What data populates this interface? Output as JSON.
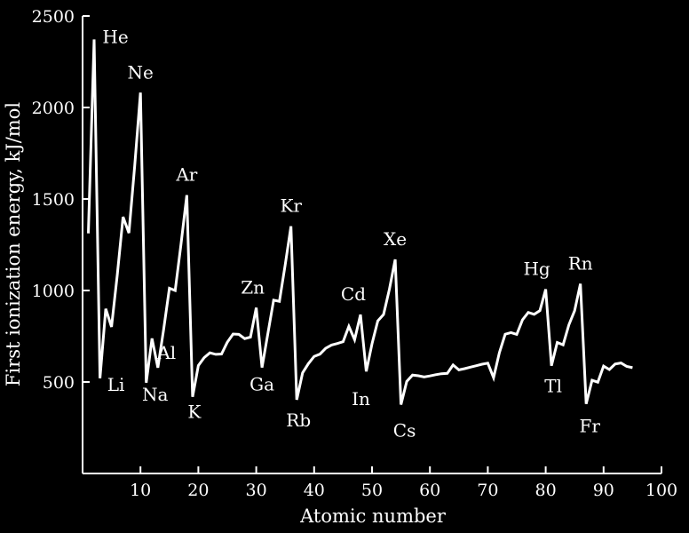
{
  "chart_data": {
    "type": "line",
    "xlabel": "Atomic number",
    "ylabel": "First ionization energy, kJ/mol",
    "xlim": [
      0,
      100
    ],
    "ylim": [
      0,
      2500
    ],
    "xticks": [
      10,
      20,
      30,
      40,
      50,
      60,
      70,
      80,
      90,
      100
    ],
    "yticks": [
      500,
      1000,
      1500,
      2000,
      2500
    ],
    "grid": false,
    "legend": "none",
    "line_color": "#ffffff",
    "background": "#000000",
    "series": [
      {
        "x": [
          1,
          2,
          3,
          4,
          5,
          6,
          7,
          8,
          9,
          10,
          11,
          12,
          13,
          14,
          15,
          16,
          17,
          18,
          19,
          20,
          21,
          22,
          23,
          24,
          25,
          26,
          27,
          28,
          29,
          30,
          31,
          32,
          33,
          34,
          35,
          36,
          37,
          38,
          39,
          40,
          41,
          42,
          43,
          44,
          45,
          46,
          47,
          48,
          49,
          50,
          51,
          52,
          53,
          54,
          55,
          56,
          57,
          58,
          59,
          60,
          61,
          62,
          63,
          64,
          65,
          66,
          67,
          68,
          69,
          70,
          71,
          72,
          73,
          74,
          75,
          76,
          77,
          78,
          79,
          80,
          81,
          82,
          83,
          84,
          85,
          86,
          87,
          88,
          89,
          90,
          91,
          92,
          93,
          94,
          95
        ],
        "y": [
          1312,
          2372,
          520,
          900,
          801,
          1086,
          1402,
          1314,
          1681,
          2081,
          496,
          738,
          578,
          787,
          1012,
          1000,
          1251,
          1521,
          419,
          590,
          633,
          659,
          651,
          653,
          717,
          762,
          760,
          737,
          745,
          906,
          579,
          762,
          947,
          941,
          1140,
          1351,
          403,
          550,
          600,
          640,
          652,
          684,
          702,
          710,
          720,
          804,
          731,
          868,
          558,
          709,
          834,
          869,
          1008,
          1170,
          376,
          503,
          538,
          534,
          527,
          533,
          540,
          545,
          547,
          593,
          566,
          573,
          581,
          589,
          597,
          603,
          524,
          659,
          761,
          770,
          760,
          840,
          880,
          870,
          890,
          1007,
          589,
          716,
          703,
          812,
          890,
          1037,
          380,
          509,
          499,
          587,
          568,
          598,
          604,
          585,
          578
        ]
      }
    ],
    "annotations": [
      {
        "text": "He",
        "x": 2,
        "y": 2372
      },
      {
        "text": "Ne",
        "x": 10,
        "y": 2081
      },
      {
        "text": "Ar",
        "x": 18,
        "y": 1521
      },
      {
        "text": "Kr",
        "x": 36,
        "y": 1351
      },
      {
        "text": "Zn",
        "x": 30,
        "y": 906
      },
      {
        "text": "Cd",
        "x": 48,
        "y": 868
      },
      {
        "text": "Xe",
        "x": 54,
        "y": 1170
      },
      {
        "text": "Hg",
        "x": 80,
        "y": 1007
      },
      {
        "text": "Rn",
        "x": 86,
        "y": 1037
      },
      {
        "text": "Li",
        "x": 3,
        "y": 520
      },
      {
        "text": "Na",
        "x": 11,
        "y": 496
      },
      {
        "text": "Al",
        "x": 13,
        "y": 578
      },
      {
        "text": "K",
        "x": 19,
        "y": 419
      },
      {
        "text": "Ga",
        "x": 31,
        "y": 579
      },
      {
        "text": "Rb",
        "x": 37,
        "y": 403
      },
      {
        "text": "In",
        "x": 49,
        "y": 558
      },
      {
        "text": "Cs",
        "x": 55,
        "y": 376
      },
      {
        "text": "Tl",
        "x": 81,
        "y": 589
      },
      {
        "text": "Fr",
        "x": 87,
        "y": 380
      }
    ]
  }
}
